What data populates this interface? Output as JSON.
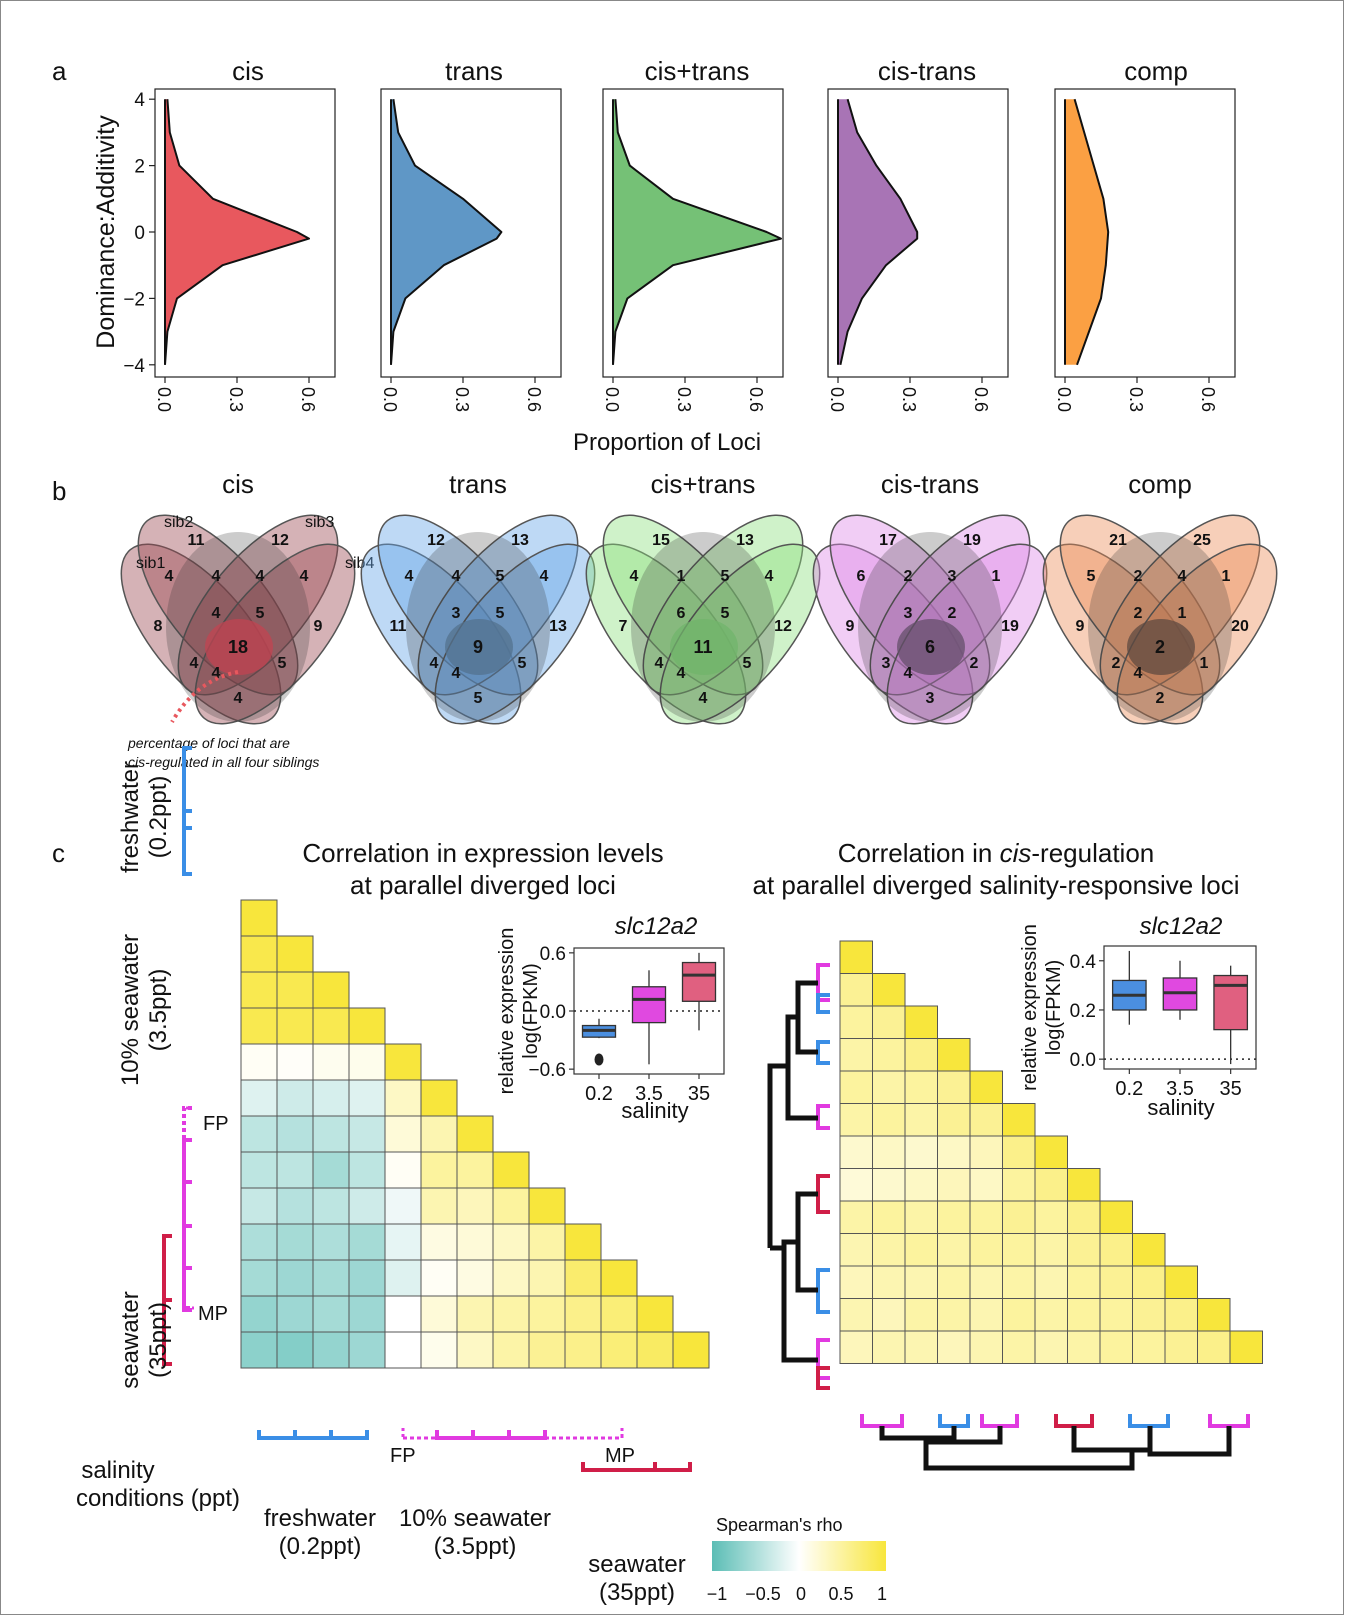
{
  "panel_labels": {
    "a": "a",
    "b": "b",
    "c": "c"
  },
  "panel_a": {
    "ylabel": "Dominance:Additivity",
    "xlabel": "Proportion of Loci",
    "y_ticks": [
      "4",
      "2",
      "0",
      "−2",
      "−4"
    ],
    "x_ticks": [
      "0.0",
      "0.3",
      "0.6"
    ],
    "colors": [
      "#e8585e",
      "#5f97c6",
      "#75c176",
      "#a874b5",
      "#fba043"
    ]
  },
  "panel_b": {
    "sibling_labels": [
      "sib1",
      "sib2",
      "sib3",
      "sib4"
    ],
    "annotation_line1": "percentage of loci that are",
    "annotation_line2": "cis-regulated in all four siblings",
    "venns": [
      {
        "title": "cis",
        "color": "#9a4751",
        "center_color": "#f04a5c",
        "counts": [
          "8",
          "11",
          "12",
          "9",
          "4",
          "4",
          "4",
          "4",
          "4",
          "18",
          "5",
          "4",
          "5",
          "4",
          "4"
        ]
      },
      {
        "title": "trans",
        "color": "#63a5e8",
        "center_color": "#5d87ae",
        "counts": [
          "11",
          "12",
          "13",
          "13",
          "4",
          "4",
          "5",
          "4",
          "3",
          "9",
          "5",
          "4",
          "5",
          "4",
          "5"
        ]
      },
      {
        "title": "cis+trans",
        "color": "#8ce07f",
        "center_color": "#86e07e",
        "counts": [
          "7",
          "15",
          "13",
          "12",
          "4",
          "1",
          "5",
          "4",
          "6",
          "11",
          "5",
          "4",
          "5",
          "4",
          "4"
        ]
      },
      {
        "title": "cis-trans",
        "color": "#de88e8",
        "center_color": "#74587c",
        "counts": [
          "9",
          "17",
          "19",
          "19",
          "6",
          "2",
          "3",
          "1",
          "3",
          "6",
          "2",
          "3",
          "2",
          "4",
          "3"
        ]
      },
      {
        "title": "comp",
        "color": "#ec8c58",
        "center_color": "#6e5145",
        "counts": [
          "9",
          "21",
          "25",
          "20",
          "5",
          "2",
          "4",
          "1",
          "2",
          "2",
          "1",
          "2",
          "1",
          "4",
          "2"
        ]
      }
    ]
  },
  "panel_c": {
    "left_title_line1": "Correlation in expression levels",
    "left_title_line2": "at parallel diverged loci",
    "right_title_pre": "Correlation in ",
    "right_title_italic": "cis",
    "right_title_post": "-regulation",
    "right_title_line2": "at parallel diverged salinity-responsive loci",
    "y_groups": [
      {
        "line1": "freshwater",
        "line2": "(0.2ppt)"
      },
      {
        "line1": "10% seawater",
        "line2": "(3.5ppt)"
      },
      {
        "line1": "seawater",
        "line2": "(35ppt)"
      }
    ],
    "fp_label": "FP",
    "mp_label": "MP",
    "bottom_heading_line1": "salinity",
    "bottom_heading_line2": "conditions (ppt)",
    "bottom_groups": [
      {
        "line1": "freshwater",
        "line2": "(0.2ppt)"
      },
      {
        "line1": "10% seawater",
        "line2": "(3.5ppt)"
      },
      {
        "line1": "seawater",
        "line2": "(35ppt)"
      }
    ],
    "legend_title": "Spearman's rho",
    "legend_ticks": [
      "−1",
      "−0.5",
      "0",
      "0.5",
      "1"
    ],
    "group_colors": {
      "fresh": "#3a8ee6",
      "ten": "#e13ae0",
      "sea": "#d01e48"
    }
  },
  "insets": [
    {
      "title": "slc12a2",
      "ylabel_line1": "relative expression",
      "ylabel_line2": "log(FPKM)",
      "xlabel": "salinity",
      "x_ticks": [
        "0.2",
        "3.5",
        "35"
      ],
      "y_ticks": [
        "0.6",
        "0.0",
        "−0.6"
      ]
    },
    {
      "title": "slc12a2",
      "ylabel_line1": "relative expression",
      "ylabel_line2": "log(FPKM)",
      "xlabel": "salinity",
      "x_ticks": [
        "0.2",
        "3.5",
        "35"
      ],
      "y_ticks": [
        "0.4",
        "0.2",
        "0.0"
      ]
    }
  ],
  "chart_data": [
    {
      "type": "area",
      "title": "cis",
      "ylabel": "Dominance:Additivity",
      "xlabel": "Proportion of Loci",
      "xlim": [
        0,
        0.75
      ],
      "ylim": [
        -4,
        4
      ],
      "y": [
        4,
        3,
        2,
        1,
        0,
        -0.2,
        -1,
        -2,
        -3,
        -4
      ],
      "x": [
        0.01,
        0.02,
        0.06,
        0.2,
        0.55,
        0.6,
        0.24,
        0.05,
        0.01,
        0.0
      ]
    },
    {
      "type": "area",
      "title": "trans",
      "xlim": [
        0,
        0.75
      ],
      "ylim": [
        -4,
        4
      ],
      "y": [
        4,
        3,
        2,
        1,
        0,
        -0.2,
        -1,
        -2,
        -3,
        -4
      ],
      "x": [
        0.01,
        0.03,
        0.1,
        0.3,
        0.46,
        0.44,
        0.22,
        0.06,
        0.01,
        0.0
      ]
    },
    {
      "type": "area",
      "title": "cis+trans",
      "xlim": [
        0,
        0.75
      ],
      "ylim": [
        -4,
        4
      ],
      "y": [
        4,
        3,
        2,
        1,
        0,
        -0.2,
        -1,
        -2,
        -3,
        -4
      ],
      "x": [
        0.01,
        0.02,
        0.07,
        0.25,
        0.64,
        0.7,
        0.25,
        0.06,
        0.01,
        0.0
      ]
    },
    {
      "type": "area",
      "title": "cis-trans",
      "xlim": [
        0,
        0.75
      ],
      "ylim": [
        -4,
        4
      ],
      "y": [
        4,
        3,
        2,
        1,
        0,
        -0.2,
        -1,
        -2,
        -3,
        -4
      ],
      "x": [
        0.04,
        0.08,
        0.16,
        0.26,
        0.33,
        0.33,
        0.2,
        0.1,
        0.04,
        0.01
      ]
    },
    {
      "type": "area",
      "title": "comp",
      "xlim": [
        0,
        0.75
      ],
      "ylim": [
        -4,
        4
      ],
      "y": [
        4,
        3,
        2,
        1,
        0,
        -1,
        -2,
        -3,
        -4
      ],
      "x": [
        0.04,
        0.08,
        0.12,
        0.16,
        0.18,
        0.17,
        0.15,
        0.1,
        0.05
      ]
    },
    {
      "type": "heatmap",
      "title": "Correlation in expression levels at parallel diverged loci",
      "lower_triangle": true,
      "rows": [
        [
          1
        ],
        [
          0.92,
          1
        ],
        [
          0.9,
          0.9,
          1
        ],
        [
          0.9,
          0.9,
          0.9,
          1
        ],
        [
          0.05,
          0.03,
          0.08,
          0.1,
          1
        ],
        [
          -0.2,
          -0.3,
          -0.25,
          -0.2,
          0.3,
          1
        ],
        [
          -0.4,
          -0.45,
          -0.4,
          -0.35,
          0.2,
          0.4,
          1
        ],
        [
          -0.4,
          -0.4,
          -0.55,
          -0.4,
          0.05,
          0.5,
          0.5,
          1
        ],
        [
          -0.35,
          -0.45,
          -0.4,
          -0.3,
          -0.1,
          0.4,
          0.35,
          0.5,
          1
        ],
        [
          -0.5,
          -0.55,
          -0.5,
          -0.55,
          -0.15,
          0.15,
          0.2,
          0.3,
          0.45,
          1
        ],
        [
          -0.55,
          -0.6,
          -0.55,
          -0.6,
          -0.2,
          0.05,
          0.15,
          0.3,
          0.4,
          0.75,
          1
        ],
        [
          -0.65,
          -0.6,
          -0.55,
          -0.6,
          0.0,
          0.2,
          0.4,
          0.45,
          0.5,
          0.6,
          0.7,
          1
        ],
        [
          -0.7,
          -0.75,
          -0.65,
          -0.6,
          0.0,
          0.1,
          0.3,
          0.45,
          0.55,
          0.6,
          0.7,
          0.8,
          1
        ]
      ]
    },
    {
      "type": "heatmap",
      "title": "Correlation in cis-regulation at parallel diverged salinity-responsive loci",
      "lower_triangle": true,
      "rows": [
        [
          1
        ],
        [
          0.55,
          1
        ],
        [
          0.5,
          0.55,
          1
        ],
        [
          0.45,
          0.5,
          0.6,
          1
        ],
        [
          0.5,
          0.45,
          0.5,
          0.55,
          1
        ],
        [
          0.45,
          0.5,
          0.45,
          0.55,
          0.55,
          1
        ],
        [
          0.25,
          0.3,
          0.25,
          0.3,
          0.35,
          0.6,
          1
        ],
        [
          0.2,
          0.25,
          0.3,
          0.35,
          0.3,
          0.5,
          0.6,
          1
        ],
        [
          0.45,
          0.5,
          0.45,
          0.5,
          0.5,
          0.55,
          0.5,
          0.6,
          1
        ],
        [
          0.4,
          0.45,
          0.5,
          0.45,
          0.5,
          0.5,
          0.45,
          0.55,
          0.6,
          1
        ],
        [
          0.35,
          0.4,
          0.4,
          0.45,
          0.4,
          0.45,
          0.4,
          0.5,
          0.55,
          0.6,
          1
        ],
        [
          0.4,
          0.35,
          0.45,
          0.45,
          0.4,
          0.5,
          0.45,
          0.5,
          0.5,
          0.55,
          0.6,
          1
        ],
        [
          0.35,
          0.4,
          0.4,
          0.35,
          0.4,
          0.45,
          0.4,
          0.45,
          0.5,
          0.5,
          0.55,
          0.6,
          1
        ]
      ]
    },
    {
      "type": "box",
      "title": "slc12a2",
      "xlabel": "salinity",
      "ylabel": "relative expression log(FPKM)",
      "ylim": [
        -0.65,
        0.65
      ],
      "categories": [
        "0.2",
        "3.5",
        "35"
      ],
      "colors": [
        "#4b8fe0",
        "#e049e0",
        "#e06080"
      ],
      "boxes": [
        {
          "min": -0.28,
          "q1": -0.27,
          "median": -0.2,
          "q3": -0.15,
          "max": -0.08,
          "outliers": [
            -0.5
          ]
        },
        {
          "min": -0.55,
          "q1": -0.12,
          "median": 0.12,
          "q3": 0.25,
          "max": 0.42
        },
        {
          "min": -0.2,
          "q1": 0.1,
          "median": 0.37,
          "q3": 0.5,
          "max": 0.6
        }
      ]
    },
    {
      "type": "box",
      "title": "slc12a2",
      "xlabel": "salinity",
      "ylabel": "relative expression log(FPKM)",
      "ylim": [
        -0.04,
        0.46
      ],
      "categories": [
        "0.2",
        "3.5",
        "35"
      ],
      "colors": [
        "#4b8fe0",
        "#e049e0",
        "#e06080"
      ],
      "boxes": [
        {
          "min": 0.14,
          "q1": 0.2,
          "median": 0.26,
          "q3": 0.32,
          "max": 0.44
        },
        {
          "min": 0.16,
          "q1": 0.2,
          "median": 0.27,
          "q3": 0.33,
          "max": 0.4
        },
        {
          "min": -0.02,
          "q1": 0.12,
          "median": 0.3,
          "q3": 0.34,
          "max": 0.38
        }
      ]
    }
  ]
}
